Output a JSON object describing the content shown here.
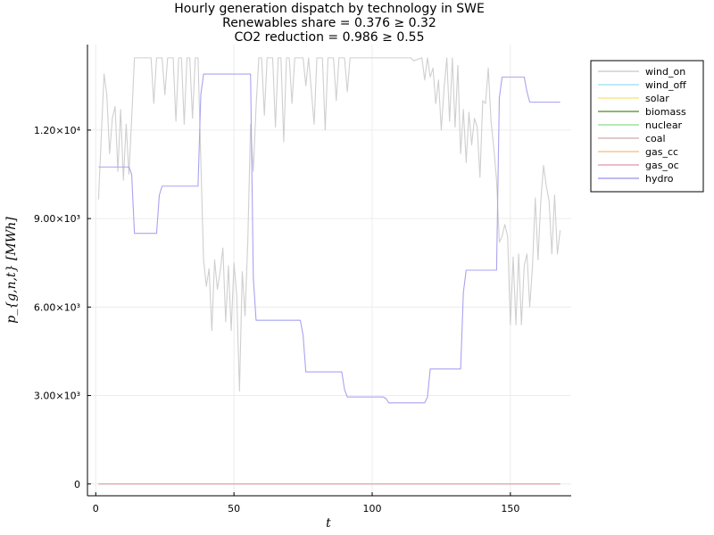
{
  "chart_data": {
    "type": "line",
    "title_lines": [
      "Hourly generation dispatch by technology in SWE",
      "Renewables share = 0.376 ≥ 0.32",
      "CO2 reduction = 0.986 ≥ 0.55"
    ],
    "xlabel": "t",
    "ylabel": "p_{g,n,t} [MWh]",
    "xlim": [
      -3,
      172
    ],
    "ylim": [
      -400,
      14900
    ],
    "xticks": [
      {
        "value": 0,
        "label": "0"
      },
      {
        "value": 50,
        "label": "50"
      },
      {
        "value": 100,
        "label": "100"
      },
      {
        "value": 150,
        "label": "150"
      }
    ],
    "yticks": [
      {
        "value": 0,
        "label": "0"
      },
      {
        "value": 3000,
        "label": "3.00×10³"
      },
      {
        "value": 6000,
        "label": "6.00×10³"
      },
      {
        "value": 9000,
        "label": "9.00×10³"
      },
      {
        "value": 12000,
        "label": "1.20×10⁴"
      }
    ],
    "grid": true,
    "legend_position": "top-right outside",
    "colors": {
      "wind_on": "#cfcfcf",
      "wind_off": "#a6e3f5",
      "solar": "#f7e58a",
      "biomass": "#6b9e48",
      "nuclear": "#9be39b",
      "coal": "#d9b8b8",
      "gas_cc": "#f5c98f",
      "gas_oc": "#e3a8b8",
      "hydro": "#a9a3f0"
    },
    "series": [
      {
        "name": "wind_on",
        "points": [
          [
            1,
            9650
          ],
          [
            2,
            11800
          ],
          [
            3,
            13900
          ],
          [
            4,
            13200
          ],
          [
            5,
            11200
          ],
          [
            6,
            12400
          ],
          [
            7,
            12800
          ],
          [
            8,
            10600
          ],
          [
            9,
            12700
          ],
          [
            10,
            10300
          ],
          [
            11,
            12200
          ],
          [
            12,
            10500
          ],
          [
            13,
            12400
          ],
          [
            14,
            14450
          ],
          [
            20,
            14450
          ],
          [
            21,
            12900
          ],
          [
            22,
            14450
          ],
          [
            24,
            14450
          ],
          [
            25,
            13200
          ],
          [
            26,
            14450
          ],
          [
            28,
            14450
          ],
          [
            29,
            12300
          ],
          [
            30,
            14450
          ],
          [
            31,
            14450
          ],
          [
            32,
            12200
          ],
          [
            33,
            14450
          ],
          [
            34,
            14450
          ],
          [
            35,
            12400
          ],
          [
            36,
            14450
          ],
          [
            37,
            14450
          ],
          [
            38,
            11000
          ],
          [
            39,
            7600
          ],
          [
            40,
            6700
          ],
          [
            41,
            7300
          ],
          [
            42,
            5200
          ],
          [
            43,
            7600
          ],
          [
            44,
            6600
          ],
          [
            45,
            7200
          ],
          [
            46,
            8000
          ],
          [
            47,
            5500
          ],
          [
            48,
            7400
          ],
          [
            49,
            5200
          ],
          [
            50,
            7500
          ],
          [
            51,
            6400
          ],
          [
            52,
            3150
          ],
          [
            53,
            7200
          ],
          [
            54,
            5700
          ],
          [
            55,
            8200
          ],
          [
            56,
            12200
          ],
          [
            57,
            10600
          ],
          [
            58,
            12800
          ],
          [
            59,
            14450
          ],
          [
            60,
            14450
          ],
          [
            61,
            12500
          ],
          [
            62,
            14450
          ],
          [
            64,
            14450
          ],
          [
            65,
            12100
          ],
          [
            66,
            14450
          ],
          [
            67,
            14450
          ],
          [
            68,
            11600
          ],
          [
            69,
            14450
          ],
          [
            70,
            14450
          ],
          [
            71,
            12900
          ],
          [
            72,
            14450
          ],
          [
            75,
            14450
          ],
          [
            76,
            13500
          ],
          [
            77,
            14450
          ],
          [
            79,
            12200
          ],
          [
            80,
            14450
          ],
          [
            82,
            14450
          ],
          [
            83,
            12000
          ],
          [
            84,
            14450
          ],
          [
            86,
            14450
          ],
          [
            87,
            13000
          ],
          [
            88,
            14450
          ],
          [
            90,
            14450
          ],
          [
            91,
            13300
          ],
          [
            92,
            14450
          ],
          [
            114,
            14450
          ],
          [
            115,
            14350
          ],
          [
            118,
            14450
          ],
          [
            119,
            13700
          ],
          [
            120,
            14450
          ],
          [
            121,
            13800
          ],
          [
            122,
            14100
          ],
          [
            123,
            12900
          ],
          [
            124,
            13700
          ],
          [
            125,
            12000
          ],
          [
            126,
            13400
          ],
          [
            127,
            14450
          ],
          [
            128,
            12300
          ],
          [
            129,
            14450
          ],
          [
            130,
            12100
          ],
          [
            131,
            14200
          ],
          [
            132,
            11200
          ],
          [
            133,
            12700
          ],
          [
            134,
            10900
          ],
          [
            135,
            12600
          ],
          [
            136,
            11500
          ],
          [
            137,
            12400
          ],
          [
            138,
            12100
          ],
          [
            139,
            10400
          ],
          [
            140,
            13000
          ],
          [
            141,
            12900
          ],
          [
            142,
            14100
          ],
          [
            143,
            12300
          ],
          [
            144,
            11400
          ],
          [
            145,
            10300
          ],
          [
            146,
            8200
          ],
          [
            147,
            8400
          ],
          [
            148,
            8800
          ],
          [
            149,
            8400
          ],
          [
            150,
            5400
          ],
          [
            151,
            7700
          ],
          [
            152,
            5400
          ],
          [
            153,
            7800
          ],
          [
            154,
            5400
          ],
          [
            155,
            7400
          ],
          [
            156,
            7800
          ],
          [
            157,
            6000
          ],
          [
            158,
            7400
          ],
          [
            159,
            9700
          ],
          [
            160,
            7600
          ],
          [
            161,
            9600
          ],
          [
            162,
            10800
          ],
          [
            163,
            10100
          ],
          [
            164,
            9600
          ],
          [
            165,
            7800
          ],
          [
            166,
            9800
          ],
          [
            167,
            7800
          ],
          [
            168,
            8600
          ]
        ]
      },
      {
        "name": "wind_off",
        "points": [
          [
            1,
            0
          ],
          [
            168,
            0
          ]
        ]
      },
      {
        "name": "solar",
        "points": [
          [
            1,
            0
          ],
          [
            168,
            0
          ]
        ]
      },
      {
        "name": "biomass",
        "points": [
          [
            1,
            0
          ],
          [
            168,
            0
          ]
        ]
      },
      {
        "name": "nuclear",
        "points": [
          [
            1,
            0
          ],
          [
            168,
            0
          ]
        ]
      },
      {
        "name": "coal",
        "points": [
          [
            1,
            0
          ],
          [
            168,
            0
          ]
        ]
      },
      {
        "name": "gas_cc",
        "points": [
          [
            1,
            0
          ],
          [
            168,
            0
          ]
        ]
      },
      {
        "name": "gas_oc",
        "points": [
          [
            1,
            0
          ],
          [
            168,
            0
          ]
        ]
      },
      {
        "name": "hydro",
        "points": [
          [
            1,
            10750
          ],
          [
            12,
            10750
          ],
          [
            13,
            10500
          ],
          [
            14,
            8500
          ],
          [
            22,
            8500
          ],
          [
            23,
            9800
          ],
          [
            24,
            10100
          ],
          [
            37,
            10100
          ],
          [
            38,
            13200
          ],
          [
            39,
            13900
          ],
          [
            56,
            13900
          ],
          [
            57,
            7000
          ],
          [
            58,
            5550
          ],
          [
            74,
            5550
          ],
          [
            75,
            5050
          ],
          [
            76,
            3800
          ],
          [
            89,
            3800
          ],
          [
            90,
            3200
          ],
          [
            91,
            2950
          ],
          [
            104,
            2950
          ],
          [
            105,
            2900
          ],
          [
            106,
            2750
          ],
          [
            119,
            2750
          ],
          [
            120,
            2950
          ],
          [
            121,
            3900
          ],
          [
            132,
            3900
          ],
          [
            133,
            6500
          ],
          [
            134,
            7250
          ],
          [
            145,
            7250
          ],
          [
            146,
            13100
          ],
          [
            147,
            13800
          ],
          [
            155,
            13800
          ],
          [
            156,
            13300
          ],
          [
            157,
            12950
          ],
          [
            168,
            12950
          ]
        ]
      }
    ]
  }
}
